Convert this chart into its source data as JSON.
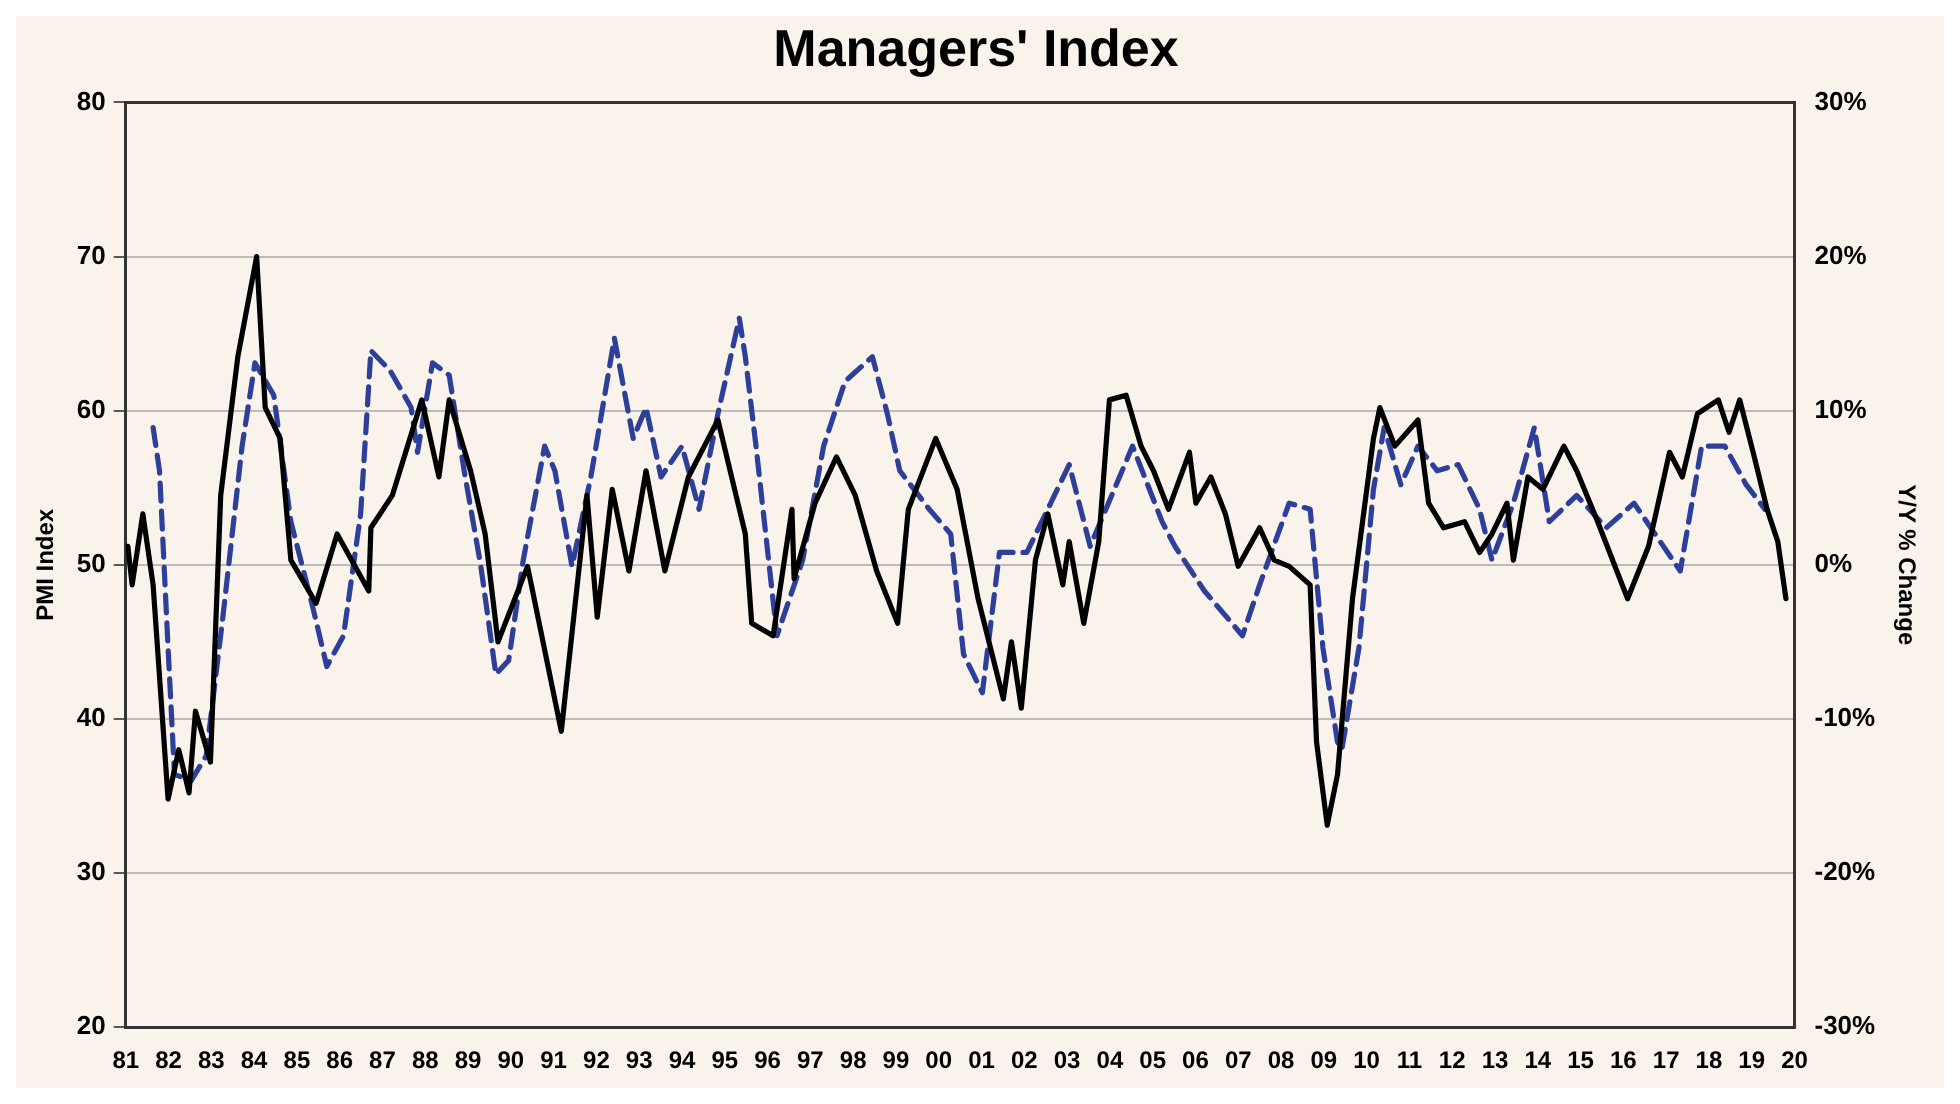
{
  "chart_data": {
    "type": "line",
    "title": "Managers' Index",
    "ylabel": "PMI Index",
    "y2label": "Y/Y % Change",
    "xlim": [
      1981,
      2020
    ],
    "xticks": [
      {
        "value": 1981,
        "label": "81"
      },
      {
        "value": 1982,
        "label": "82"
      },
      {
        "value": 1983,
        "label": "83"
      },
      {
        "value": 1984,
        "label": "84"
      },
      {
        "value": 1985,
        "label": "85"
      },
      {
        "value": 1986,
        "label": "86"
      },
      {
        "value": 1987,
        "label": "87"
      },
      {
        "value": 1988,
        "label": "88"
      },
      {
        "value": 1989,
        "label": "89"
      },
      {
        "value": 1990,
        "label": "90"
      },
      {
        "value": 1991,
        "label": "91"
      },
      {
        "value": 1992,
        "label": "92"
      },
      {
        "value": 1993,
        "label": "93"
      },
      {
        "value": 1994,
        "label": "94"
      },
      {
        "value": 1995,
        "label": "95"
      },
      {
        "value": 1996,
        "label": "96"
      },
      {
        "value": 1997,
        "label": "97"
      },
      {
        "value": 1998,
        "label": "98"
      },
      {
        "value": 1999,
        "label": "99"
      },
      {
        "value": 2000,
        "label": "00"
      },
      {
        "value": 2001,
        "label": "01"
      },
      {
        "value": 2002,
        "label": "02"
      },
      {
        "value": 2003,
        "label": "03"
      },
      {
        "value": 2004,
        "label": "04"
      },
      {
        "value": 2005,
        "label": "05"
      },
      {
        "value": 2006,
        "label": "06"
      },
      {
        "value": 2007,
        "label": "07"
      },
      {
        "value": 2008,
        "label": "08"
      },
      {
        "value": 2009,
        "label": "09"
      },
      {
        "value": 2010,
        "label": "10"
      },
      {
        "value": 2011,
        "label": "11"
      },
      {
        "value": 2012,
        "label": "12"
      },
      {
        "value": 2013,
        "label": "13"
      },
      {
        "value": 2014,
        "label": "14"
      },
      {
        "value": 2015,
        "label": "15"
      },
      {
        "value": 2016,
        "label": "16"
      },
      {
        "value": 2017,
        "label": "17"
      },
      {
        "value": 2018,
        "label": "18"
      },
      {
        "value": 2019,
        "label": "19"
      },
      {
        "value": 2020,
        "label": "20"
      }
    ],
    "ylim": [
      20,
      80
    ],
    "yticks": [
      20,
      30,
      40,
      50,
      60,
      70,
      80
    ],
    "y2lim": [
      -30,
      30
    ],
    "y2ticks": [
      {
        "value": -30,
        "label": "-30%"
      },
      {
        "value": -20,
        "label": "-20%"
      },
      {
        "value": -10,
        "label": "-10%"
      },
      {
        "value": 0,
        "label": "0%"
      },
      {
        "value": 10,
        "label": "10%"
      },
      {
        "value": 20,
        "label": "20%"
      },
      {
        "value": 30,
        "label": "30%"
      }
    ],
    "grid": "y",
    "legend": false,
    "marker": "none",
    "series": [
      {
        "color": "#000000",
        "line_style": "solid",
        "x": [
          1981.05,
          1981.15,
          1981.4,
          1981.64,
          1981.99,
          1982.24,
          1982.48,
          1982.63,
          1982.98,
          1983.22,
          1983.62,
          1984.06,
          1984.26,
          1984.61,
          1984.86,
          1985.45,
          1985.94,
          1986.68,
          1986.73,
          1987.23,
          1987.92,
          1988.32,
          1988.56,
          1989.06,
          1989.4,
          1989.7,
          1990.39,
          1991.18,
          1991.78,
          1992.02,
          1992.37,
          1992.76,
          1993.16,
          1993.6,
          1994.15,
          1994.84,
          1995.48,
          1995.63,
          1996.13,
          1996.57,
          1996.62,
          1997.11,
          1997.61,
          1998.05,
          1998.55,
          1999.04,
          1999.29,
          1999.93,
          2000.43,
          2000.92,
          2001.32,
          2001.51,
          2001.7,
          2001.93,
          2002.26,
          2002.55,
          2002.9,
          2003.05,
          2003.39,
          2003.74,
          2003.99,
          2004.38,
          2004.73,
          2005.02,
          2005.37,
          2005.86,
          2006.01,
          2006.36,
          2006.7,
          2007.0,
          2007.5,
          2007.84,
          2008.19,
          2008.68,
          2008.83,
          2009.08,
          2009.32,
          2009.67,
          2010.16,
          2010.31,
          2010.66,
          2011.2,
          2011.45,
          2011.8,
          2012.29,
          2012.64,
          2012.93,
          2013.28,
          2013.43,
          2013.77,
          2014.12,
          2014.61,
          2014.91,
          2015.4,
          2016.1,
          2016.59,
          2017.08,
          2017.38,
          2017.73,
          2018.22,
          2018.47,
          2018.72,
          2019.06,
          2019.36,
          2019.61,
          2019.8
        ],
        "values": [
          51.2,
          48.7,
          53.3,
          48.7,
          34.8,
          38.0,
          35.2,
          40.5,
          37.2,
          54.5,
          63.5,
          70.0,
          60.2,
          58.2,
          50.3,
          47.5,
          52.0,
          48.3,
          52.4,
          54.5,
          60.7,
          55.7,
          60.7,
          56.1,
          52.0,
          45.0,
          49.9,
          39.2,
          54.5,
          46.6,
          54.9,
          49.6,
          56.1,
          49.6,
          55.7,
          59.4,
          52.0,
          46.2,
          45.4,
          53.6,
          49.1,
          54.0,
          57.0,
          54.5,
          49.6,
          46.2,
          53.6,
          58.2,
          54.9,
          47.8,
          43.4,
          41.3,
          45.0,
          40.7,
          50.3,
          53.3,
          48.7,
          51.5,
          46.2,
          51.5,
          60.7,
          61.0,
          57.7,
          56.1,
          53.6,
          57.3,
          54.0,
          55.7,
          53.3,
          49.9,
          52.4,
          50.3,
          49.9,
          48.7,
          38.5,
          33.1,
          36.4,
          47.8,
          58.2,
          60.2,
          57.7,
          59.4,
          54.0,
          52.4,
          52.8,
          50.8,
          52.0,
          54.0,
          50.3,
          55.7,
          54.9,
          57.7,
          56.1,
          52.8,
          47.8,
          51.2,
          57.3,
          55.7,
          59.8,
          60.7,
          58.6,
          60.7,
          57.0,
          53.6,
          51.5,
          47.8
        ]
      },
      {
        "color": "#2e3f9a",
        "line_style": "dashed",
        "axis": "y2",
        "x": [
          1981.64,
          1981.79,
          1981.99,
          1982.14,
          1982.53,
          1982.88,
          1983.27,
          1983.72,
          1984.02,
          1984.46,
          1984.86,
          1985.35,
          1985.7,
          1986.09,
          1986.49,
          1986.73,
          1987.18,
          1987.67,
          1987.82,
          1988.17,
          1988.56,
          1988.91,
          1989.3,
          1989.65,
          1989.95,
          1990.29,
          1990.79,
          1991.03,
          1991.43,
          1991.87,
          1992.42,
          1992.86,
          1993.16,
          1993.51,
          1994.0,
          1994.4,
          1994.84,
          1995.34,
          1995.48,
          1995.73,
          1996.22,
          1996.82,
          1997.31,
          1997.81,
          1998.45,
          1998.8,
          1999.09,
          1999.78,
          2000.28,
          2000.58,
          2001.02,
          2001.42,
          2002.06,
          2003.05,
          2003.54,
          2004.53,
          2005.22,
          2005.52,
          2006.21,
          2007.1,
          2007.5,
          2008.19,
          2008.68,
          2008.98,
          2009.32,
          2009.42,
          2009.82,
          2010.16,
          2010.41,
          2010.8,
          2011.2,
          2011.65,
          2012.14,
          2012.64,
          2012.93,
          2013.43,
          2013.92,
          2014.27,
          2014.91,
          2015.6,
          2016.25,
          2016.74,
          2017.33,
          2017.83,
          2018.37,
          2018.87,
          2019.31
        ],
        "values": [
          8.9,
          6.1,
          -5.4,
          -13.6,
          -14.0,
          -12.4,
          -3.4,
          7.7,
          13.1,
          11.0,
          2.8,
          -2.5,
          -6.6,
          -4.6,
          3.3,
          13.9,
          12.6,
          10.2,
          7.3,
          13.1,
          12.3,
          6.1,
          -0.1,
          -7.1,
          -6.2,
          0.3,
          7.7,
          6.1,
          -0.1,
          5.7,
          14.7,
          8.2,
          10.2,
          5.7,
          7.7,
          3.6,
          9.8,
          16.0,
          13.5,
          7.7,
          -4.6,
          0.3,
          7.7,
          11.9,
          13.5,
          9.8,
          6.1,
          3.6,
          2.0,
          -5.8,
          -8.3,
          0.8,
          0.8,
          6.5,
          1.2,
          7.7,
          2.8,
          1.2,
          -1.7,
          -4.6,
          -1.3,
          4.0,
          3.6,
          -5.4,
          -11.5,
          -12.0,
          -5.4,
          4.9,
          8.9,
          5.2,
          7.7,
          6.1,
          6.5,
          3.6,
          0.3,
          4.0,
          8.9,
          2.8,
          4.5,
          2.4,
          4.0,
          2.0,
          -0.4,
          7.7,
          7.7,
          5.2,
          3.6
        ]
      }
    ]
  }
}
